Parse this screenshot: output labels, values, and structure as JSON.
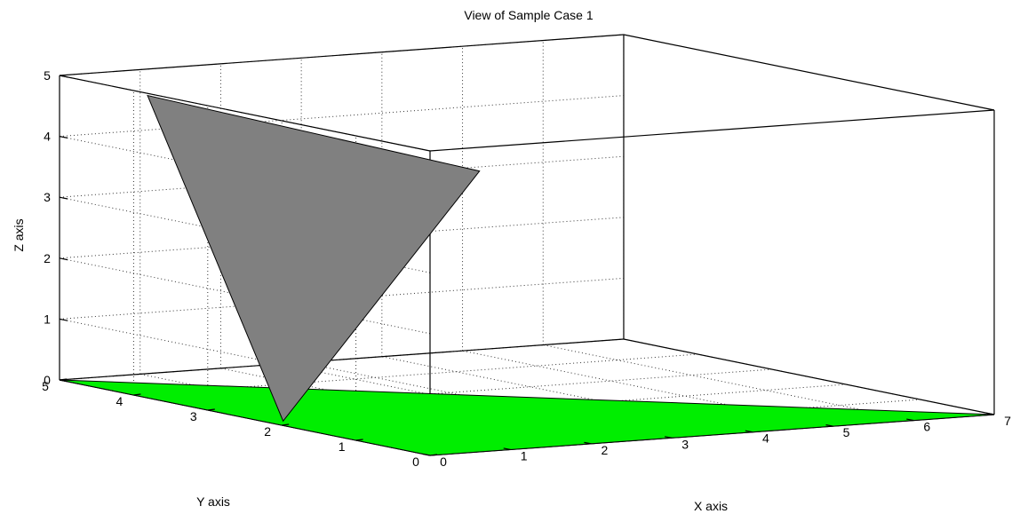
{
  "chart_data": {
    "type": "surface3d",
    "title": "View of Sample Case 1",
    "xlabel": "X axis",
    "ylabel": "Y axis",
    "zlabel": "Z axis",
    "xlim": [
      0,
      7
    ],
    "ylim": [
      0,
      5
    ],
    "zlim": [
      0,
      5
    ],
    "xticks": [
      "0",
      "1",
      "2",
      "3",
      "4",
      "5",
      "6",
      "7"
    ],
    "yticks": [
      "0",
      "1",
      "2",
      "3",
      "4",
      "5"
    ],
    "zticks": [
      "0",
      "1",
      "2",
      "3",
      "4",
      "5"
    ],
    "grid": true,
    "box": true,
    "faces": [
      {
        "color": "#00ee00",
        "vertices": [
          [
            0,
            0,
            0
          ],
          [
            7,
            0,
            0
          ],
          [
            0,
            5,
            0
          ]
        ]
      },
      {
        "color": "#808080",
        "vertices": [
          [
            0.2,
            2.2,
            0
          ],
          [
            1,
            4.9,
            4.6
          ],
          [
            4.2,
            3.9,
            3.3
          ]
        ]
      }
    ]
  }
}
